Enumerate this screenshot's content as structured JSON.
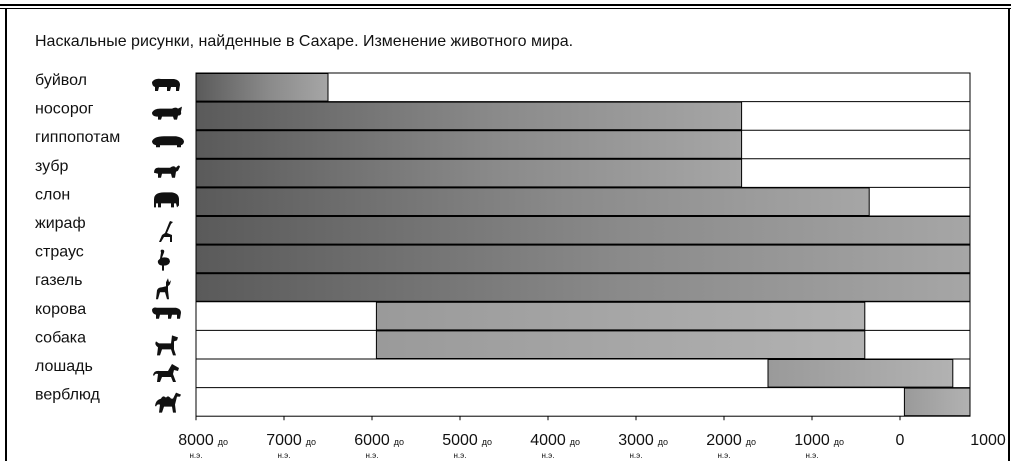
{
  "title": "Наскальные рисунки, найденные в Сахаре. Изменение животного мира.",
  "chart_data": {
    "type": "bar",
    "subtype": "timeline-range",
    "title": "Наскальные рисунки, найденные в Сахаре. Изменение животного мира.",
    "x_axis": {
      "ticks": [
        {
          "value": -8000,
          "main": "8000",
          "suffix": "до",
          "sub": "н.э."
        },
        {
          "value": -7000,
          "main": "7000",
          "suffix": "до",
          "sub": "н.э."
        },
        {
          "value": -6000,
          "main": "6000",
          "suffix": "до",
          "sub": "н.э."
        },
        {
          "value": -5000,
          "main": "5000",
          "suffix": "до",
          "sub": "н.э."
        },
        {
          "value": -4000,
          "main": "4000",
          "suffix": "до",
          "sub": "н.э."
        },
        {
          "value": -3000,
          "main": "3000",
          "suffix": "до",
          "sub": "н.э."
        },
        {
          "value": -2000,
          "main": "2000",
          "suffix": "до",
          "sub": "н.э."
        },
        {
          "value": -1000,
          "main": "1000",
          "suffix": "до",
          "sub": "н.э."
        },
        {
          "value": 0,
          "main": "0",
          "suffix": "",
          "sub": ""
        },
        {
          "value": 1000,
          "main": "1000",
          "suffix": "",
          "sub": ""
        }
      ],
      "range": [
        -8000,
        1100
      ]
    },
    "rows": [
      {
        "label": "буйвол",
        "icon": "buffalo-icon",
        "start": -8000,
        "end": -6500
      },
      {
        "label": "носорог",
        "icon": "rhinoceros-icon",
        "start": -8000,
        "end": -1800
      },
      {
        "label": "гиппопотам",
        "icon": "hippopotamus-icon",
        "start": -8000,
        "end": -1800
      },
      {
        "label": "зубр",
        "icon": "bison-icon",
        "start": -8000,
        "end": -1800
      },
      {
        "label": "слон",
        "icon": "elephant-icon",
        "start": -8000,
        "end": -350
      },
      {
        "label": "жираф",
        "icon": "giraffe-icon",
        "start": -8000,
        "end": 1100
      },
      {
        "label": "страус",
        "icon": "ostrich-icon",
        "start": -8000,
        "end": 1100
      },
      {
        "label": "газель",
        "icon": "gazelle-icon",
        "start": -8000,
        "end": 1100
      },
      {
        "label": "корова",
        "icon": "cow-icon",
        "start": -5950,
        "end": -400
      },
      {
        "label": "собака",
        "icon": "dog-icon",
        "start": -5950,
        "end": -400
      },
      {
        "label": "лошадь",
        "icon": "horse-icon",
        "start": -1500,
        "end": 600
      },
      {
        "label": "верблюд",
        "icon": "camel-icon",
        "start": 50,
        "end": 1100
      }
    ],
    "colors": {
      "bar_dark": "#555555",
      "bar_light": "#a8a8a8",
      "border": "#000000"
    }
  }
}
